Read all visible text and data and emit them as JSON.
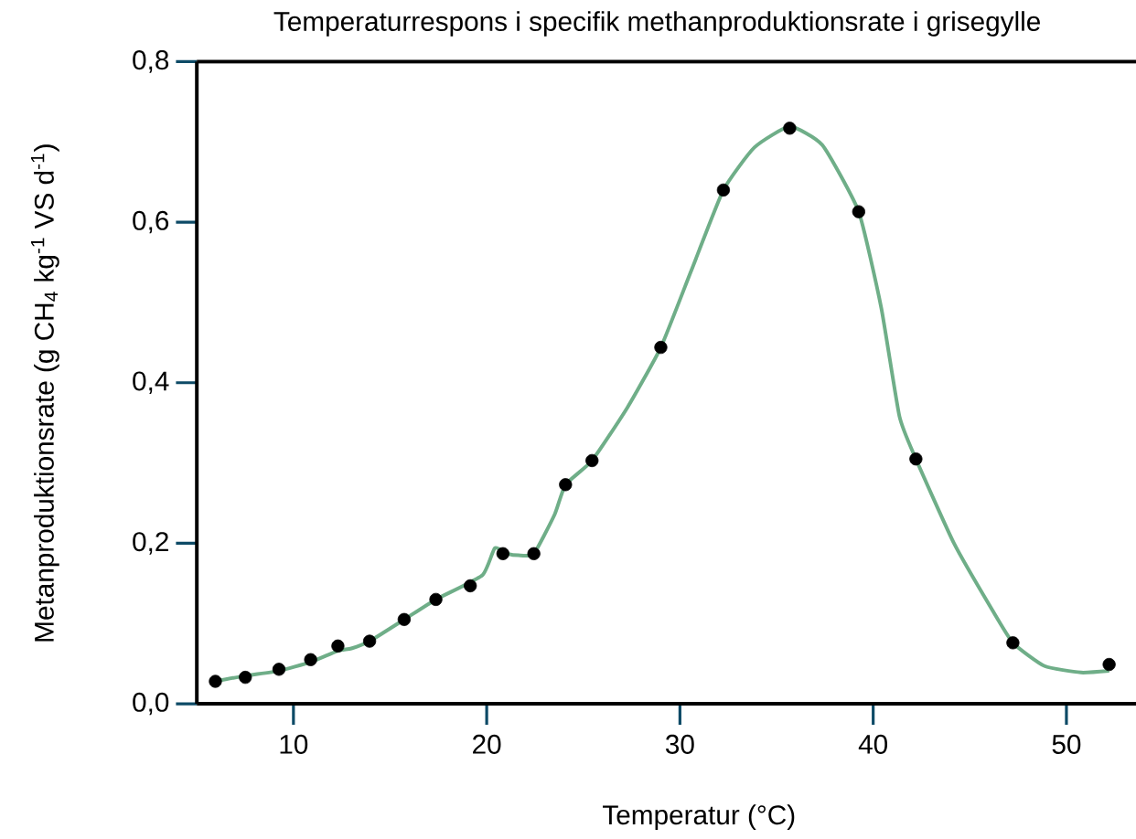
{
  "chart_data": {
    "type": "scatter",
    "title": "Temperaturrespons i specifik methanproduktionsrate i grisegylle",
    "xlabel": "Temperatur (°C)",
    "ylabel": "Metanproduktionsrate (g CH$_{4}$ kg$^{-1}$ VS d$^{-1}$)",
    "xlim": [
      5,
      53.6
    ],
    "ylim": [
      0,
      0.8
    ],
    "xticks": [
      10,
      20,
      30,
      40,
      50
    ],
    "yticks": [
      {
        "value": 0,
        "label": "0,0"
      },
      {
        "value": 0.2,
        "label": "0,2"
      },
      {
        "value": 0.4,
        "label": "0,4"
      },
      {
        "value": 0.6,
        "label": "0,6"
      },
      {
        "value": 0.8,
        "label": "0,8"
      }
    ],
    "grid": false,
    "series": [
      {
        "type": "line",
        "color": "#6fae88",
        "marker": "none",
        "line_style": "solid",
        "x": [
          5.96,
          7.51,
          9.25,
          10.89,
          12.3,
          13.0,
          13.94,
          15.73,
          17.37,
          19.77,
          20.42,
          21.08,
          21.64,
          22.44,
          23.52,
          24.08,
          25.45,
          27.28,
          29.01,
          30.56,
          32.25,
          33.85,
          35.68,
          37.37,
          39.25,
          40.42,
          41.36,
          42.21,
          44.18,
          46.06,
          47.23,
          48.87,
          50.75,
          52.21
        ],
        "values": [
          0.028,
          0.035,
          0.041,
          0.052,
          0.066,
          0.069,
          0.078,
          0.105,
          0.13,
          0.16,
          0.194,
          0.187,
          0.185,
          0.187,
          0.236,
          0.273,
          0.303,
          0.369,
          0.444,
          0.538,
          0.64,
          0.693,
          0.719,
          0.696,
          0.613,
          0.493,
          0.358,
          0.305,
          0.2,
          0.121,
          0.076,
          0.047,
          0.039,
          0.041
        ]
      },
      {
        "type": "scatter",
        "color": "#000000",
        "marker": "circle",
        "x": [
          5.96,
          7.51,
          9.25,
          10.89,
          12.3,
          13.94,
          15.73,
          17.37,
          19.15,
          20.84,
          22.44,
          24.08,
          25.45,
          29.01,
          32.25,
          35.68,
          39.25,
          42.21,
          47.23,
          52.21
        ],
        "values": [
          0.028,
          0.033,
          0.043,
          0.055,
          0.072,
          0.078,
          0.105,
          0.13,
          0.147,
          0.187,
          0.187,
          0.273,
          0.303,
          0.444,
          0.64,
          0.717,
          0.613,
          0.305,
          0.076,
          0.049
        ]
      }
    ]
  }
}
